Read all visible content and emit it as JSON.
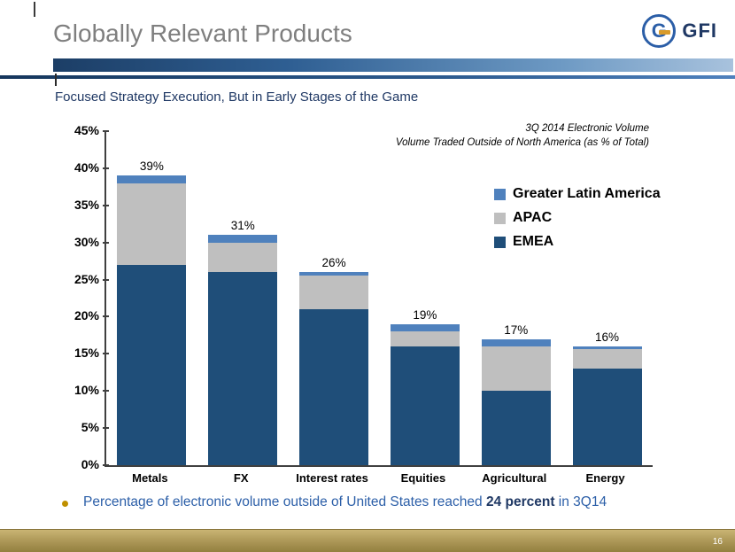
{
  "slide": {
    "title": "Globally Relevant Products",
    "subtitle": "Focused Strategy Execution, But in Early Stages of the Game",
    "page_number": "16"
  },
  "logo": {
    "text": "GFI",
    "monogram": "G",
    "ring_color": "#2B5EA7",
    "accent_color": "#D89B2B"
  },
  "chart_data": {
    "type": "bar",
    "stacked": true,
    "annotation_lines": [
      "3Q 2014 Electronic Volume",
      "Volume Traded Outside of North America (as % of Total)"
    ],
    "categories": [
      "Metals",
      "FX",
      "Interest rates",
      "Equities",
      "Agricultural",
      "Energy"
    ],
    "series": [
      {
        "name": "EMEA",
        "color": "#1F4E79",
        "values": [
          27,
          26,
          21,
          16,
          10,
          13
        ]
      },
      {
        "name": "APAC",
        "color": "#BFBFBF",
        "values": [
          11,
          4,
          4.6,
          2,
          6,
          2.7
        ]
      },
      {
        "name": "Greater Latin America",
        "color": "#4F81BD",
        "values": [
          1,
          1,
          0.4,
          1,
          1,
          0.3
        ]
      }
    ],
    "totals": [
      "39%",
      "31%",
      "26%",
      "19%",
      "17%",
      "16%"
    ],
    "y_ticks": [
      "45%",
      "40%",
      "35%",
      "30%",
      "25%",
      "20%",
      "15%",
      "10%",
      "5%",
      "0%"
    ],
    "ylim": [
      0,
      45
    ],
    "grid": false,
    "legend_position": "upper-right",
    "legend": [
      {
        "label": "Greater Latin America",
        "color": "#4F81BD"
      },
      {
        "label": "APAC",
        "color": "#BFBFBF"
      },
      {
        "label": "EMEA",
        "color": "#1F4E79"
      }
    ]
  },
  "footer": {
    "bullet_before": "Percentage of electronic volume outside of United States reached ",
    "bullet_highlight": "24 percent",
    "bullet_after": " in 3Q14",
    "bullet_color": "#BF9000",
    "bar_color": "#AD9858"
  }
}
